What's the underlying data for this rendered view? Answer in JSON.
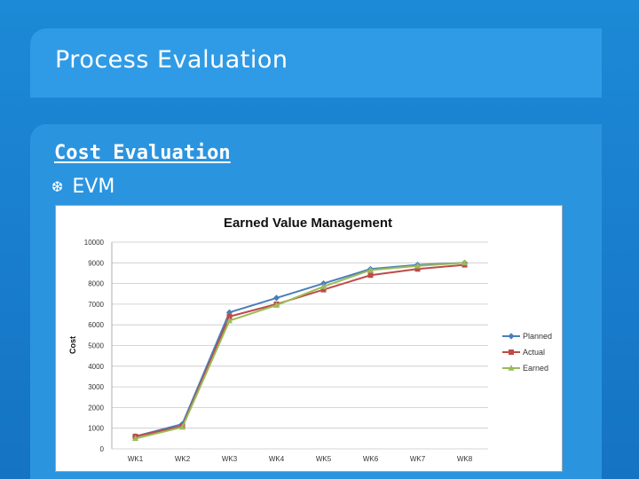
{
  "slide": {
    "title": "Process Evaluation",
    "heading": "Cost Evaluation",
    "bullet": {
      "icon": "swash-bullet-icon",
      "glyph": "❆",
      "text": "EVM"
    }
  },
  "colors": {
    "background": "#1a7fcf",
    "planned": "#4a7ebb",
    "actual": "#be4b48",
    "earned": "#9bbb59"
  },
  "chart_data": {
    "type": "line",
    "title": "Earned Value Management",
    "xlabel": "",
    "ylabel": "Cost",
    "categories": [
      "WK1",
      "WK2",
      "WK3",
      "WK4",
      "WK5",
      "WK6",
      "WK7",
      "WK8"
    ],
    "ylim": [
      0,
      10000
    ],
    "yticks": [
      0,
      1000,
      2000,
      3000,
      4000,
      5000,
      6000,
      7000,
      8000,
      9000,
      10000
    ],
    "grid": true,
    "legend": "right",
    "series": [
      {
        "name": "Planned",
        "color": "#4a7ebb",
        "marker": "diamond",
        "values": [
          600,
          1200,
          6600,
          7300,
          8000,
          8700,
          8900,
          9000
        ]
      },
      {
        "name": "Actual",
        "color": "#be4b48",
        "marker": "square",
        "values": [
          600,
          1100,
          6400,
          7000,
          7700,
          8400,
          8700,
          8900
        ]
      },
      {
        "name": "Earned",
        "color": "#9bbb59",
        "marker": "triangle",
        "values": [
          500,
          1050,
          6200,
          6950,
          7850,
          8650,
          8850,
          9000
        ]
      }
    ]
  }
}
